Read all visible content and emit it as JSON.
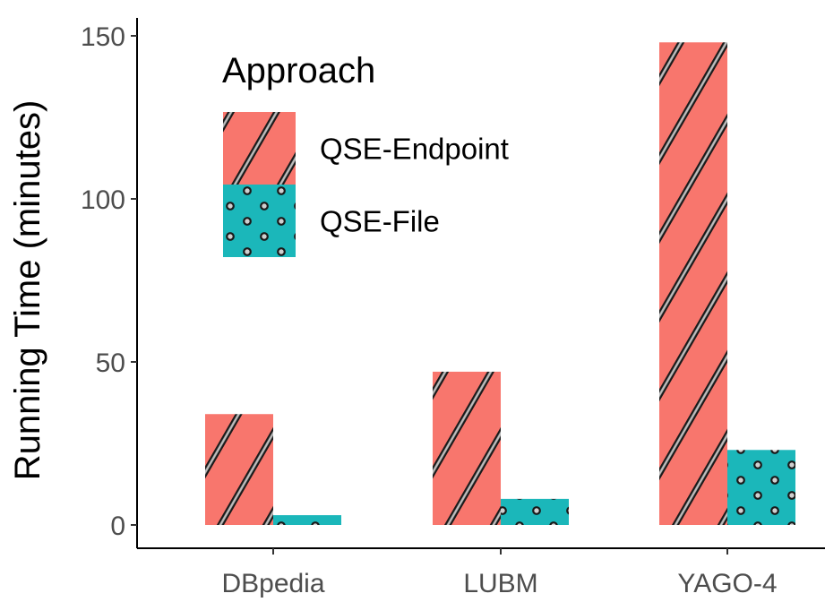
{
  "chart_data": {
    "type": "bar",
    "title": "",
    "xlabel": "",
    "ylabel": "Running Time (minutes)",
    "categories": [
      "DBpedia",
      "LUBM",
      "YAGO-4"
    ],
    "series": [
      {
        "name": "QSE-Endpoint",
        "values": [
          34,
          47,
          148
        ],
        "color": "#F8766D",
        "pattern": "stripe"
      },
      {
        "name": "QSE-File",
        "values": [
          3,
          8,
          23
        ],
        "color": "#1BB7BA",
        "pattern": "circle"
      }
    ],
    "ylim": [
      0,
      155
    ],
    "yticks": [
      0,
      50,
      100,
      150
    ],
    "ytick_labels": [
      "0",
      "50",
      "100",
      "150"
    ],
    "grid": false,
    "legend": {
      "title": "Approach",
      "position": "top-left"
    }
  }
}
